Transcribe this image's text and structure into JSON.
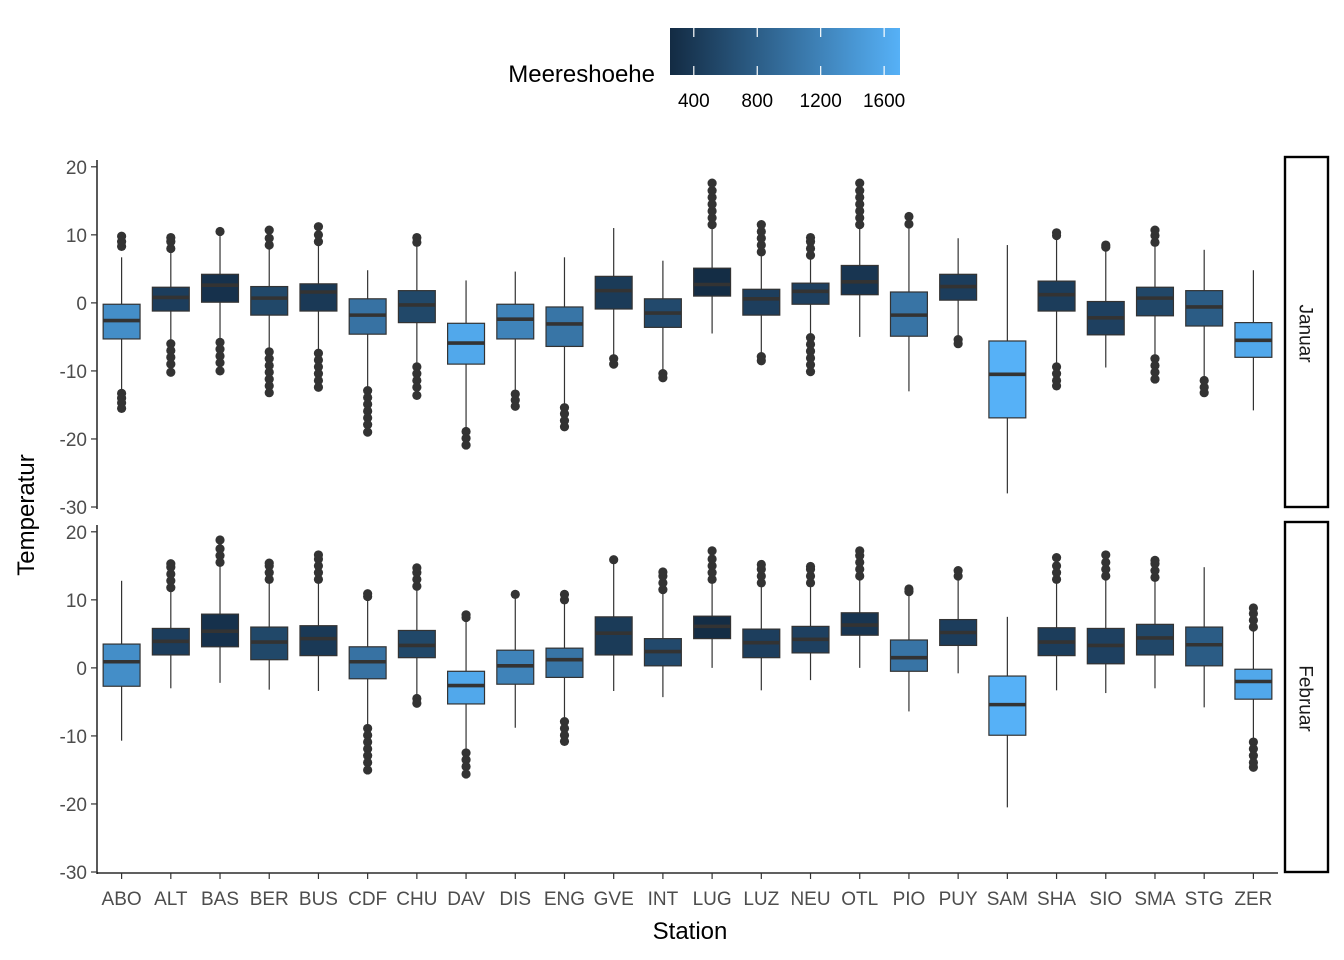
{
  "chart_data": {
    "type": "boxplot",
    "xlabel": "Station",
    "ylabel": "Temperatur",
    "categories": [
      "ABO",
      "ALT",
      "BAS",
      "BER",
      "BUS",
      "CDF",
      "CHU",
      "DAV",
      "DIS",
      "ENG",
      "GVE",
      "INT",
      "LUG",
      "LUZ",
      "NEU",
      "OTL",
      "PIO",
      "PUY",
      "SAM",
      "SHA",
      "SIO",
      "SMA",
      "STG",
      "ZER"
    ],
    "ylim": [
      -30,
      21
    ],
    "yticks": [
      -30,
      -20,
      -10,
      0,
      10,
      20
    ],
    "yticklabels": [
      "-30",
      "-20",
      "-10",
      "0",
      "10",
      "20"
    ],
    "fill_legend": {
      "title": "Meereshoehe",
      "ticks": [
        400,
        800,
        1200,
        1600
      ],
      "tick_labels": [
        "400",
        "800",
        "1200",
        "1600"
      ],
      "range": [
        250,
        1700
      ],
      "color_low": "#132B43",
      "color_high": "#56B1F7"
    },
    "station_altitude": [
      1320,
      450,
      320,
      560,
      400,
      1020,
      560,
      1600,
      1200,
      1050,
      420,
      580,
      270,
      460,
      480,
      360,
      1040,
      450,
      1700,
      440,
      480,
      550,
      780,
      1600
    ],
    "panels": [
      {
        "label": "Januar",
        "boxes": [
          {
            "q1": -5.3,
            "median": -2.6,
            "q3": -0.2,
            "wlo": -13.0,
            "whi": 6.7,
            "outliers": [
              -13.3,
              -14.0,
              -14.7,
              -15.5,
              8.3,
              9.0,
              9.8
            ]
          },
          {
            "q1": -1.2,
            "median": 0.8,
            "q3": 2.3,
            "wlo": -5.7,
            "whi": 7.5,
            "outliers": [
              -6.0,
              -7.0,
              -8.0,
              -9.0,
              -10.2,
              8.0,
              9.0,
              9.6
            ]
          },
          {
            "q1": 0.1,
            "median": 2.6,
            "q3": 4.2,
            "wlo": -5.5,
            "whi": 10.0,
            "outliers": [
              -5.8,
              -6.8,
              -7.8,
              -8.8,
              -10.0,
              10.5
            ]
          },
          {
            "q1": -1.8,
            "median": 0.7,
            "q3": 2.4,
            "wlo": -6.9,
            "whi": 8.0,
            "outliers": [
              -7.2,
              -8.2,
              -9.2,
              -10.2,
              -11.2,
              -12.2,
              -13.2,
              8.5,
              9.5,
              10.7
            ]
          },
          {
            "q1": -1.2,
            "median": 1.6,
            "q3": 2.8,
            "wlo": -7.0,
            "whi": 8.5,
            "outliers": [
              -7.4,
              -8.4,
              -9.4,
              -10.4,
              -11.4,
              -12.4,
              9.0,
              10.0,
              11.2
            ]
          },
          {
            "q1": -4.6,
            "median": -1.8,
            "q3": 0.6,
            "wlo": -12.5,
            "whi": 4.8,
            "outliers": [
              -12.9,
              -13.9,
              -14.9,
              -15.9,
              -16.9,
              -17.9,
              -19.0
            ]
          },
          {
            "q1": -2.9,
            "median": -0.3,
            "q3": 1.8,
            "wlo": -9.0,
            "whi": 8.5,
            "outliers": [
              -9.4,
              -10.4,
              -11.4,
              -12.4,
              -13.6,
              8.9,
              9.6
            ]
          },
          {
            "q1": -9.0,
            "median": -5.9,
            "q3": -3.0,
            "wlo": -18.5,
            "whi": 3.3,
            "outliers": [
              -18.9,
              -19.9,
              -20.9
            ]
          },
          {
            "q1": -5.3,
            "median": -2.4,
            "q3": -0.2,
            "wlo": -13.0,
            "whi": 4.6,
            "outliers": [
              -13.4,
              -14.3,
              -15.2
            ]
          },
          {
            "q1": -6.4,
            "median": -3.1,
            "q3": -0.6,
            "wlo": -15.0,
            "whi": 6.7,
            "outliers": [
              -15.4,
              -16.3,
              -17.3,
              -18.2
            ]
          },
          {
            "q1": -0.9,
            "median": 1.8,
            "q3": 3.9,
            "wlo": -7.8,
            "whi": 11.0,
            "outliers": [
              -8.2,
              -9.0
            ]
          },
          {
            "q1": -3.6,
            "median": -1.5,
            "q3": 0.6,
            "wlo": -10.0,
            "whi": 6.2,
            "outliers": [
              -10.4,
              -11.0
            ]
          },
          {
            "q1": 1.0,
            "median": 2.7,
            "q3": 5.1,
            "wlo": -4.5,
            "whi": 11.0,
            "outliers": [
              11.5,
              12.5,
              13.5,
              14.5,
              15.5,
              16.5,
              17.6
            ]
          },
          {
            "q1": -1.8,
            "median": 0.6,
            "q3": 2.0,
            "wlo": -7.5,
            "whi": 7.0,
            "outliers": [
              -7.9,
              -8.5,
              7.5,
              8.5,
              9.5,
              10.5,
              11.5
            ]
          },
          {
            "q1": -0.2,
            "median": 1.7,
            "q3": 2.9,
            "wlo": -4.7,
            "whi": 6.5,
            "outliers": [
              -5.1,
              -6.1,
              -7.1,
              -8.1,
              -9.1,
              -10.1,
              7.0,
              8.0,
              9.0,
              9.6
            ]
          },
          {
            "q1": 1.2,
            "median": 3.1,
            "q3": 5.5,
            "wlo": -5.0,
            "whi": 11.0,
            "outliers": [
              11.5,
              12.5,
              13.5,
              14.5,
              15.5,
              16.5,
              17.6
            ]
          },
          {
            "q1": -4.9,
            "median": -1.8,
            "q3": 1.6,
            "wlo": -13.0,
            "whi": 11.0,
            "outliers": [
              11.6,
              12.7
            ]
          },
          {
            "q1": 0.4,
            "median": 2.4,
            "q3": 4.2,
            "wlo": -5.0,
            "whi": 9.5,
            "outliers": [
              -5.4,
              -6.0
            ]
          },
          {
            "q1": -16.9,
            "median": -10.5,
            "q3": -5.6,
            "wlo": -28.0,
            "whi": 8.5,
            "outliers": []
          },
          {
            "q1": -1.2,
            "median": 1.2,
            "q3": 3.2,
            "wlo": -9.0,
            "whi": 9.5,
            "outliers": [
              -9.4,
              -10.4,
              -11.4,
              -12.2,
              9.9,
              10.3
            ]
          },
          {
            "q1": -4.7,
            "median": -2.2,
            "q3": 0.2,
            "wlo": -9.5,
            "whi": 7.8,
            "outliers": [
              8.2,
              8.5
            ]
          },
          {
            "q1": -1.9,
            "median": 0.7,
            "q3": 2.3,
            "wlo": -7.8,
            "whi": 8.5,
            "outliers": [
              -8.2,
              -9.2,
              -10.2,
              -11.2,
              8.9,
              9.9,
              10.7
            ]
          },
          {
            "q1": -3.4,
            "median": -0.6,
            "q3": 1.8,
            "wlo": -11.0,
            "whi": 7.8,
            "outliers": [
              -11.4,
              -12.4,
              -13.2
            ]
          },
          {
            "q1": -8.0,
            "median": -5.5,
            "q3": -2.9,
            "wlo": -15.8,
            "whi": 4.8,
            "outliers": []
          }
        ]
      },
      {
        "label": "Februar",
        "boxes": [
          {
            "q1": -2.7,
            "median": 0.9,
            "q3": 3.5,
            "wlo": -10.7,
            "whi": 12.8,
            "outliers": []
          },
          {
            "q1": 1.9,
            "median": 3.9,
            "q3": 5.8,
            "wlo": -3.0,
            "whi": 11.3,
            "outliers": [
              11.8,
              12.8,
              13.8,
              14.8,
              15.3
            ]
          },
          {
            "q1": 3.1,
            "median": 5.4,
            "q3": 7.9,
            "wlo": -2.2,
            "whi": 15.0,
            "outliers": [
              15.5,
              16.5,
              17.5,
              18.8
            ]
          },
          {
            "q1": 1.2,
            "median": 3.8,
            "q3": 6.0,
            "wlo": -3.2,
            "whi": 12.5,
            "outliers": [
              13.0,
              14.0,
              15.0,
              15.4
            ]
          },
          {
            "q1": 1.8,
            "median": 4.3,
            "q3": 6.2,
            "wlo": -3.4,
            "whi": 12.5,
            "outliers": [
              13.0,
              14.0,
              15.0,
              16.0,
              16.6
            ]
          },
          {
            "q1": -1.6,
            "median": 0.9,
            "q3": 3.1,
            "wlo": -8.5,
            "whi": 10.0,
            "outliers": [
              -8.9,
              -9.9,
              -10.9,
              -11.9,
              -12.9,
              -13.9,
              -15.0,
              10.5,
              10.9
            ]
          },
          {
            "q1": 1.5,
            "median": 3.3,
            "q3": 5.5,
            "wlo": -4.0,
            "whi": 11.5,
            "outliers": [
              -4.5,
              -5.2,
              12.0,
              13.0,
              14.0,
              14.7
            ]
          },
          {
            "q1": -5.3,
            "median": -2.6,
            "q3": -0.5,
            "wlo": -12.0,
            "whi": 7.0,
            "outliers": [
              -12.5,
              -13.5,
              -14.5,
              -15.6,
              7.4,
              7.8
            ]
          },
          {
            "q1": -2.4,
            "median": 0.3,
            "q3": 2.6,
            "wlo": -8.8,
            "whi": 10.5,
            "outliers": [
              10.8
            ]
          },
          {
            "q1": -1.4,
            "median": 1.2,
            "q3": 2.9,
            "wlo": -7.5,
            "whi": 9.5,
            "outliers": [
              -7.9,
              -8.9,
              -9.9,
              -10.8,
              10.0,
              10.8
            ]
          },
          {
            "q1": 1.9,
            "median": 5.1,
            "q3": 7.5,
            "wlo": -3.4,
            "whi": 15.5,
            "outliers": [
              15.9
            ]
          },
          {
            "q1": 0.3,
            "median": 2.4,
            "q3": 4.3,
            "wlo": -4.3,
            "whi": 11.0,
            "outliers": [
              11.5,
              12.5,
              13.5,
              14.1
            ]
          },
          {
            "q1": 4.3,
            "median": 6.1,
            "q3": 7.6,
            "wlo": 0.0,
            "whi": 12.5,
            "outliers": [
              13.0,
              14.0,
              15.0,
              16.0,
              17.2
            ]
          },
          {
            "q1": 1.5,
            "median": 3.7,
            "q3": 5.7,
            "wlo": -3.3,
            "whi": 12.0,
            "outliers": [
              12.5,
              13.5,
              14.5,
              15.2
            ]
          },
          {
            "q1": 2.2,
            "median": 4.2,
            "q3": 6.1,
            "wlo": -1.8,
            "whi": 12.0,
            "outliers": [
              12.5,
              13.5,
              14.5,
              14.9
            ]
          },
          {
            "q1": 4.8,
            "median": 6.3,
            "q3": 8.1,
            "wlo": 0.0,
            "whi": 13.0,
            "outliers": [
              13.5,
              14.5,
              15.5,
              16.5,
              17.2
            ]
          },
          {
            "q1": -0.5,
            "median": 1.5,
            "q3": 4.1,
            "wlo": -6.4,
            "whi": 10.8,
            "outliers": [
              11.2,
              11.6
            ]
          },
          {
            "q1": 3.3,
            "median": 5.2,
            "q3": 7.1,
            "wlo": -0.8,
            "whi": 13.0,
            "outliers": [
              13.5,
              14.3
            ]
          },
          {
            "q1": -9.9,
            "median": -5.4,
            "q3": -1.2,
            "wlo": -20.5,
            "whi": 7.5,
            "outliers": []
          },
          {
            "q1": 1.8,
            "median": 3.8,
            "q3": 5.9,
            "wlo": -3.3,
            "whi": 12.5,
            "outliers": [
              13.0,
              14.0,
              15.0,
              16.2
            ]
          },
          {
            "q1": 0.6,
            "median": 3.3,
            "q3": 5.8,
            "wlo": -3.7,
            "whi": 13.0,
            "outliers": [
              13.5,
              14.5,
              15.5,
              16.6
            ]
          },
          {
            "q1": 1.9,
            "median": 4.4,
            "q3": 6.4,
            "wlo": -3.0,
            "whi": 12.8,
            "outliers": [
              13.3,
              14.3,
              15.3,
              15.8
            ]
          },
          {
            "q1": 0.3,
            "median": 3.4,
            "q3": 6.0,
            "wlo": -5.8,
            "whi": 14.8,
            "outliers": []
          },
          {
            "q1": -4.6,
            "median": -2.0,
            "q3": -0.2,
            "wlo": -10.5,
            "whi": 5.5,
            "outliers": [
              -10.9,
              -11.9,
              -12.9,
              -13.9,
              -14.6,
              6.0,
              7.0,
              8.0,
              8.8
            ]
          }
        ]
      }
    ]
  }
}
